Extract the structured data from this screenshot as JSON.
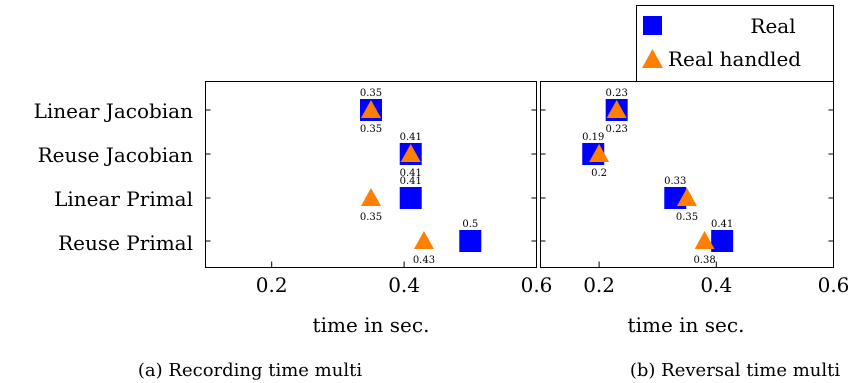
{
  "legend": {
    "entries": [
      {
        "label": "Real",
        "marker": "square",
        "color": "#0000ff"
      },
      {
        "label": "Real handled",
        "marker": "triangle",
        "color": "#ff8000"
      }
    ]
  },
  "categories": [
    "Linear Jacobian",
    "Reuse Jacobian",
    "Linear Primal",
    "Reuse Primal"
  ],
  "chart_data": [
    {
      "type": "scatter",
      "subplot": "a",
      "caption": "(a) Recording time multi",
      "xlabel": "time in sec.",
      "xlim": [
        0.1,
        0.6
      ],
      "xticks": [
        "0.2",
        "0.4",
        "0.6"
      ],
      "categories": [
        "Linear Jacobian",
        "Reuse Jacobian",
        "Linear Primal",
        "Reuse Primal"
      ],
      "series": [
        {
          "name": "Real",
          "marker": "square",
          "color": "#0000ff",
          "values": [
            0.35,
            0.41,
            0.41,
            0.5
          ],
          "labels": [
            "0.35",
            "0.41",
            "0.41",
            "0.5"
          ]
        },
        {
          "name": "Real handled",
          "marker": "triangle",
          "color": "#ff8000",
          "values": [
            0.35,
            0.41,
            0.35,
            0.43
          ],
          "labels": [
            "0.35",
            "0.41",
            "0.35",
            "0.43"
          ]
        }
      ]
    },
    {
      "type": "scatter",
      "subplot": "b",
      "caption": "(b) Reversal time multi",
      "xlabel": "time in sec.",
      "xlim": [
        0.1,
        0.6
      ],
      "xticks": [
        "0.2",
        "0.4",
        "0.6"
      ],
      "categories": [
        "Linear Jacobian",
        "Reuse Jacobian",
        "Linear Primal",
        "Reuse Primal"
      ],
      "series": [
        {
          "name": "Real",
          "marker": "square",
          "color": "#0000ff",
          "values": [
            0.23,
            0.19,
            0.33,
            0.41
          ],
          "labels": [
            "0.23",
            "0.19",
            "0.33",
            "0.41"
          ]
        },
        {
          "name": "Real handled",
          "marker": "triangle",
          "color": "#ff8000",
          "values": [
            0.23,
            0.2,
            0.35,
            0.38
          ],
          "labels": [
            "0.23",
            "0.2",
            "0.35",
            "0.38"
          ]
        }
      ]
    }
  ]
}
